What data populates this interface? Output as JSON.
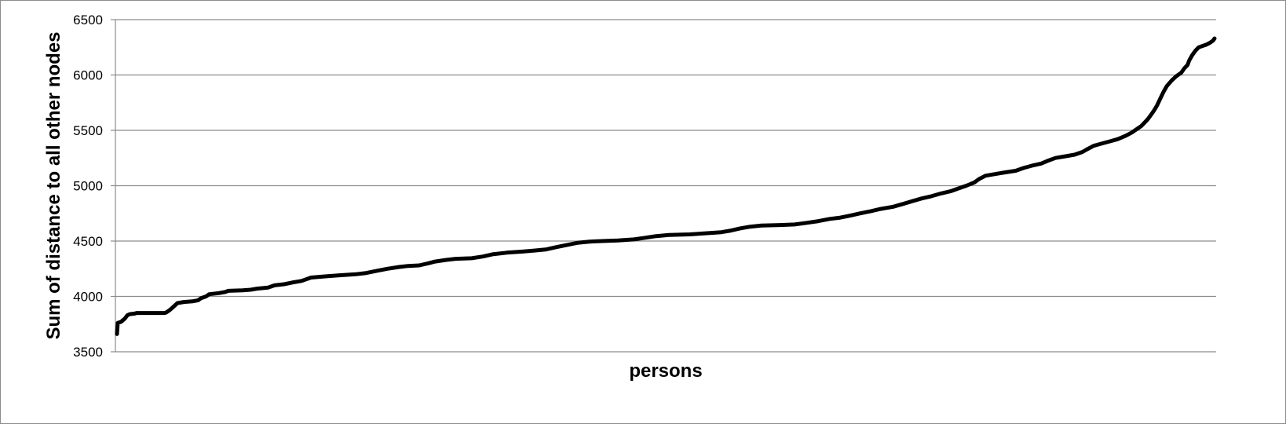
{
  "chart_data": {
    "type": "line",
    "title": "",
    "xlabel": "persons",
    "ylabel": "Sum of distance to all other nodes",
    "ylim": [
      3500,
      6500
    ],
    "yticks": [
      3500,
      4000,
      4500,
      5000,
      5500,
      6000,
      6500
    ],
    "grid": true,
    "legend": "none",
    "line_color": "#000000",
    "grid_color": "#8c8c8c",
    "series": [
      {
        "values": [
          [
            0,
            3660
          ],
          [
            1,
            3760
          ],
          [
            5,
            3770
          ],
          [
            10,
            3800
          ],
          [
            13,
            3830
          ],
          [
            16,
            3840
          ],
          [
            22,
            3845
          ],
          [
            25,
            3850
          ],
          [
            30,
            3850
          ],
          [
            60,
            3850
          ],
          [
            62,
            3855
          ],
          [
            66,
            3875
          ],
          [
            70,
            3900
          ],
          [
            76,
            3940
          ],
          [
            84,
            3950
          ],
          [
            95,
            3955
          ],
          [
            102,
            3965
          ],
          [
            106,
            3985
          ],
          [
            112,
            4000
          ],
          [
            116,
            4020
          ],
          [
            128,
            4030
          ],
          [
            136,
            4040
          ],
          [
            140,
            4050
          ],
          [
            158,
            4055
          ],
          [
            168,
            4060
          ],
          [
            176,
            4070
          ],
          [
            190,
            4080
          ],
          [
            198,
            4100
          ],
          [
            210,
            4110
          ],
          [
            220,
            4125
          ],
          [
            232,
            4140
          ],
          [
            244,
            4170
          ],
          [
            260,
            4180
          ],
          [
            278,
            4190
          ],
          [
            300,
            4200
          ],
          [
            312,
            4210
          ],
          [
            326,
            4230
          ],
          [
            340,
            4250
          ],
          [
            354,
            4265
          ],
          [
            366,
            4275
          ],
          [
            380,
            4280
          ],
          [
            392,
            4300
          ],
          [
            400,
            4315
          ],
          [
            414,
            4330
          ],
          [
            426,
            4340
          ],
          [
            446,
            4345
          ],
          [
            460,
            4360
          ],
          [
            472,
            4380
          ],
          [
            490,
            4395
          ],
          [
            510,
            4405
          ],
          [
            526,
            4415
          ],
          [
            540,
            4425
          ],
          [
            552,
            4445
          ],
          [
            566,
            4465
          ],
          [
            580,
            4485
          ],
          [
            594,
            4495
          ],
          [
            610,
            4500
          ],
          [
            630,
            4505
          ],
          [
            650,
            4515
          ],
          [
            664,
            4530
          ],
          [
            678,
            4545
          ],
          [
            694,
            4555
          ],
          [
            720,
            4560
          ],
          [
            740,
            4570
          ],
          [
            760,
            4580
          ],
          [
            772,
            4595
          ],
          [
            784,
            4615
          ],
          [
            796,
            4630
          ],
          [
            810,
            4640
          ],
          [
            834,
            4645
          ],
          [
            852,
            4650
          ],
          [
            868,
            4665
          ],
          [
            882,
            4680
          ],
          [
            896,
            4700
          ],
          [
            908,
            4710
          ],
          [
            922,
            4730
          ],
          [
            934,
            4750
          ],
          [
            948,
            4770
          ],
          [
            960,
            4790
          ],
          [
            976,
            4810
          ],
          [
            988,
            4835
          ],
          [
            1000,
            4860
          ],
          [
            1012,
            4885
          ],
          [
            1024,
            4905
          ],
          [
            1036,
            4930
          ],
          [
            1048,
            4950
          ],
          [
            1058,
            4975
          ],
          [
            1068,
            5000
          ],
          [
            1078,
            5030
          ],
          [
            1084,
            5060
          ],
          [
            1092,
            5090
          ],
          [
            1104,
            5105
          ],
          [
            1116,
            5120
          ],
          [
            1130,
            5135
          ],
          [
            1140,
            5160
          ],
          [
            1150,
            5180
          ],
          [
            1162,
            5200
          ],
          [
            1172,
            5230
          ],
          [
            1180,
            5250
          ],
          [
            1192,
            5265
          ],
          [
            1204,
            5280
          ],
          [
            1214,
            5305
          ],
          [
            1220,
            5330
          ],
          [
            1228,
            5360
          ],
          [
            1238,
            5380
          ],
          [
            1248,
            5400
          ],
          [
            1258,
            5420
          ],
          [
            1268,
            5450
          ],
          [
            1276,
            5480
          ],
          [
            1282,
            5510
          ],
          [
            1288,
            5540
          ],
          [
            1292,
            5570
          ],
          [
            1296,
            5600
          ],
          [
            1300,
            5640
          ],
          [
            1304,
            5680
          ],
          [
            1308,
            5730
          ],
          [
            1312,
            5790
          ],
          [
            1316,
            5850
          ],
          [
            1320,
            5900
          ],
          [
            1326,
            5950
          ],
          [
            1332,
            5990
          ],
          [
            1338,
            6020
          ],
          [
            1342,
            6060
          ],
          [
            1346,
            6090
          ],
          [
            1348,
            6130
          ],
          [
            1352,
            6180
          ],
          [
            1356,
            6220
          ],
          [
            1360,
            6250
          ],
          [
            1366,
            6265
          ],
          [
            1370,
            6275
          ],
          [
            1374,
            6290
          ],
          [
            1378,
            6310
          ],
          [
            1380,
            6330
          ]
        ]
      }
    ]
  }
}
